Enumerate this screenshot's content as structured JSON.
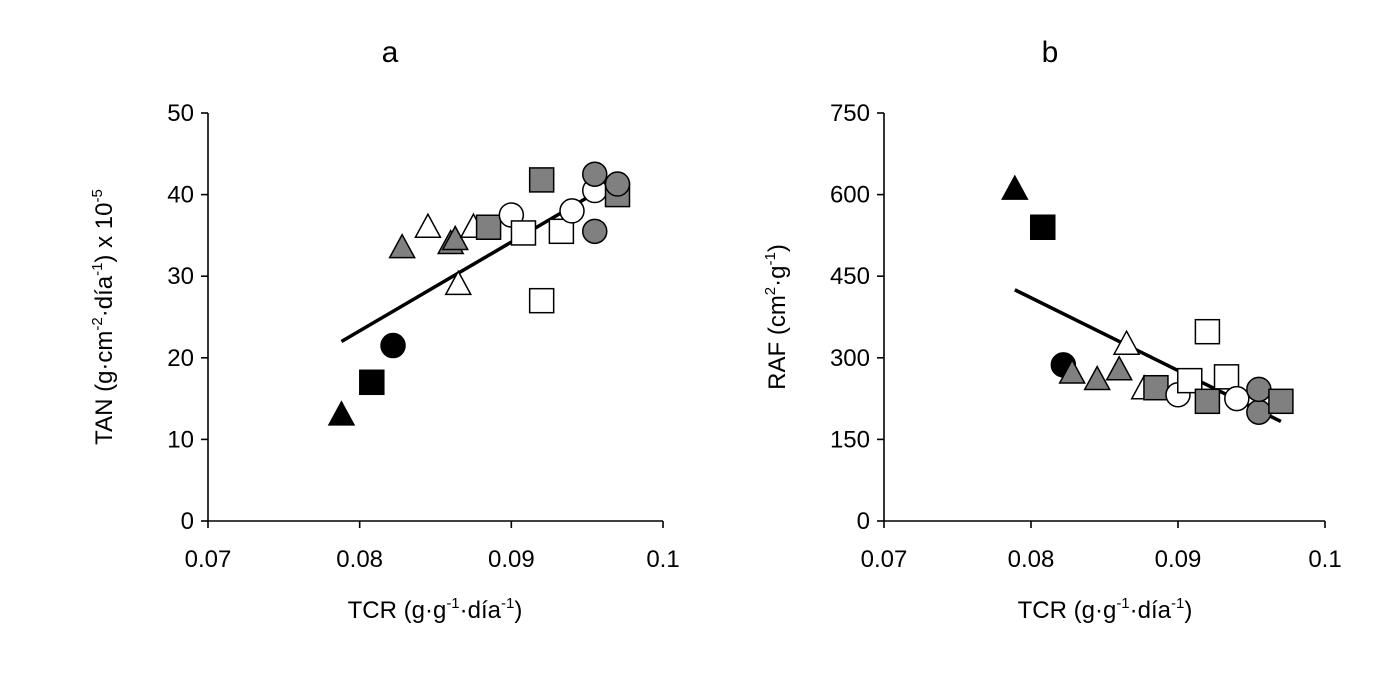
{
  "chart_data": [
    {
      "type": "scatter",
      "title": "a",
      "xlabel": {
        "base": "TCR (g·g",
        "sup1": "-1",
        "mid": "·día",
        "sup2": "-1",
        "end": ")"
      },
      "ylabel": {
        "p1": "TAN (g·cm",
        "s1": "-2",
        "p2": "·día",
        "s2": "-1",
        "p3": ") x 10",
        "s3": "-5"
      },
      "xlim": [
        0.07,
        0.1
      ],
      "ylim": [
        0,
        50
      ],
      "xticks": [
        "0.07",
        "0.08",
        "0.09",
        "0.1"
      ],
      "yticks": [
        "0",
        "10",
        "20",
        "30",
        "40",
        "50"
      ],
      "trendline": {
        "x": [
          0.0788,
          0.097
        ],
        "y": [
          22.0,
          41.8
        ]
      },
      "points": [
        {
          "x": 0.0788,
          "y": 13.0,
          "shape": "triangle",
          "fill": "black"
        },
        {
          "x": 0.0808,
          "y": 17.0,
          "shape": "square",
          "fill": "black"
        },
        {
          "x": 0.0822,
          "y": 21.5,
          "shape": "circle",
          "fill": "black"
        },
        {
          "x": 0.0828,
          "y": 33.5,
          "shape": "triangle",
          "fill": "gray"
        },
        {
          "x": 0.0845,
          "y": 36.0,
          "shape": "triangle",
          "fill": "white"
        },
        {
          "x": 0.086,
          "y": 34.0,
          "shape": "triangle",
          "fill": "gray"
        },
        {
          "x": 0.0863,
          "y": 34.5,
          "shape": "triangle",
          "fill": "gray"
        },
        {
          "x": 0.0865,
          "y": 29.0,
          "shape": "triangle",
          "fill": "white"
        },
        {
          "x": 0.0875,
          "y": 36.0,
          "shape": "triangle",
          "fill": "white"
        },
        {
          "x": 0.0885,
          "y": 36.0,
          "shape": "square",
          "fill": "gray"
        },
        {
          "x": 0.09,
          "y": 37.5,
          "shape": "circle",
          "fill": "white"
        },
        {
          "x": 0.0908,
          "y": 35.3,
          "shape": "square",
          "fill": "white"
        },
        {
          "x": 0.092,
          "y": 41.8,
          "shape": "square",
          "fill": "gray"
        },
        {
          "x": 0.092,
          "y": 27.0,
          "shape": "square",
          "fill": "white"
        },
        {
          "x": 0.0933,
          "y": 35.5,
          "shape": "square",
          "fill": "white"
        },
        {
          "x": 0.094,
          "y": 38.0,
          "shape": "circle",
          "fill": "white"
        },
        {
          "x": 0.0955,
          "y": 40.5,
          "shape": "circle",
          "fill": "white"
        },
        {
          "x": 0.0955,
          "y": 42.5,
          "shape": "circle",
          "fill": "gray"
        },
        {
          "x": 0.0955,
          "y": 35.5,
          "shape": "circle",
          "fill": "gray"
        },
        {
          "x": 0.097,
          "y": 40.0,
          "shape": "square",
          "fill": "gray"
        },
        {
          "x": 0.097,
          "y": 41.3,
          "shape": "circle",
          "fill": "gray"
        }
      ]
    },
    {
      "type": "scatter",
      "title": "b",
      "xlabel": {
        "base": "TCR (g·g",
        "sup1": "-1",
        "mid": "·día",
        "sup2": "-1",
        "end": ")"
      },
      "ylabel": {
        "p1": "RAF (cm",
        "s1": "2",
        "p2": "·g",
        "s2": "-1",
        "p3": ")",
        "s3": ""
      },
      "xlim": [
        0.07,
        0.1
      ],
      "ylim": [
        0,
        750
      ],
      "xticks": [
        "0.07",
        "0.08",
        "0.09",
        "0.1"
      ],
      "yticks": [
        "0",
        "150",
        "300",
        "450",
        "600",
        "750"
      ],
      "trendline": {
        "x": [
          0.0789,
          0.097
        ],
        "y": [
          425,
          183
        ]
      },
      "points": [
        {
          "x": 0.0789,
          "y": 610,
          "shape": "triangle",
          "fill": "black"
        },
        {
          "x": 0.0808,
          "y": 540,
          "shape": "square",
          "fill": "black"
        },
        {
          "x": 0.0822,
          "y": 287,
          "shape": "circle",
          "fill": "black"
        },
        {
          "x": 0.0828,
          "y": 272,
          "shape": "triangle",
          "fill": "gray"
        },
        {
          "x": 0.0845,
          "y": 260,
          "shape": "triangle",
          "fill": "gray"
        },
        {
          "x": 0.086,
          "y": 278,
          "shape": "triangle",
          "fill": "gray"
        },
        {
          "x": 0.0865,
          "y": 325,
          "shape": "triangle",
          "fill": "white"
        },
        {
          "x": 0.0877,
          "y": 243,
          "shape": "triangle",
          "fill": "white"
        },
        {
          "x": 0.0885,
          "y": 245,
          "shape": "square",
          "fill": "gray"
        },
        {
          "x": 0.09,
          "y": 232,
          "shape": "circle",
          "fill": "white"
        },
        {
          "x": 0.0908,
          "y": 258,
          "shape": "square",
          "fill": "white"
        },
        {
          "x": 0.092,
          "y": 348,
          "shape": "square",
          "fill": "white"
        },
        {
          "x": 0.092,
          "y": 220,
          "shape": "square",
          "fill": "gray"
        },
        {
          "x": 0.0933,
          "y": 265,
          "shape": "square",
          "fill": "white"
        },
        {
          "x": 0.094,
          "y": 225,
          "shape": "circle",
          "fill": "white"
        },
        {
          "x": 0.0955,
          "y": 200,
          "shape": "circle",
          "fill": "gray"
        },
        {
          "x": 0.0955,
          "y": 242,
          "shape": "circle",
          "fill": "gray"
        },
        {
          "x": 0.097,
          "y": 220,
          "shape": "square",
          "fill": "gray"
        }
      ]
    }
  ],
  "colors": {
    "black": "#000000",
    "gray": "#808080",
    "white": "#ffffff"
  }
}
